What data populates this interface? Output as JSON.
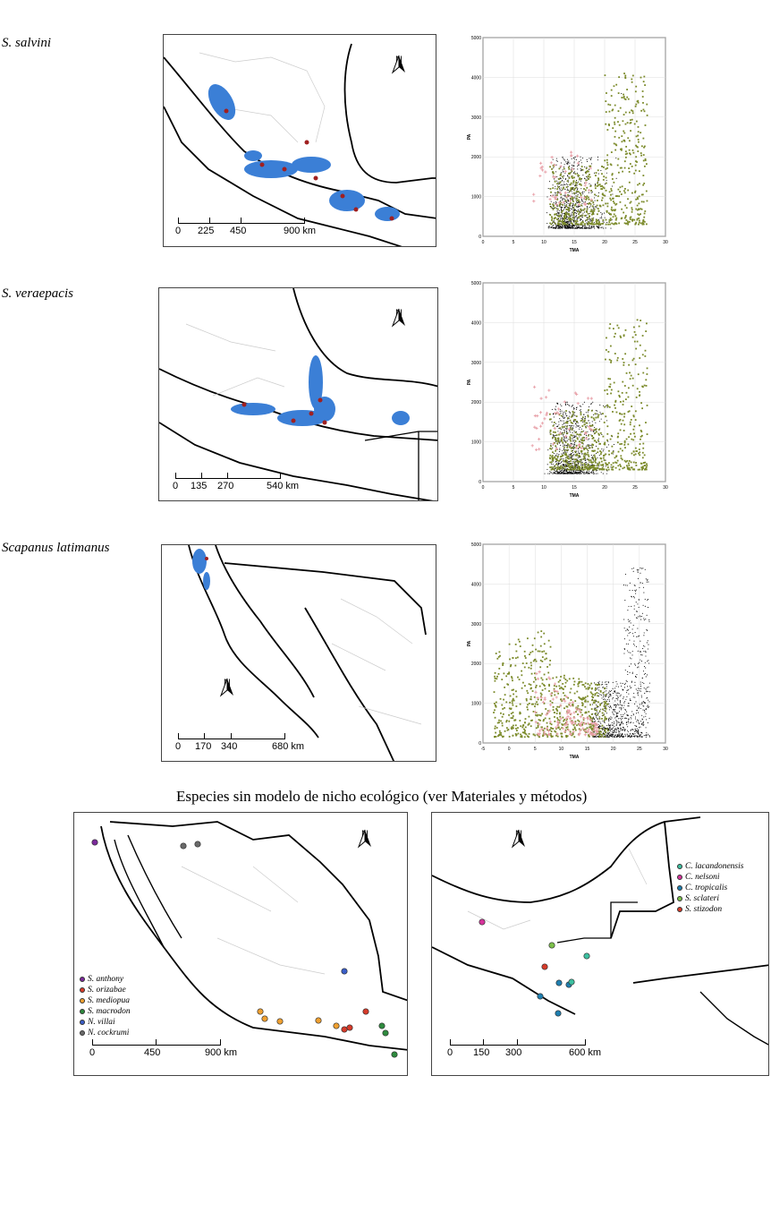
{
  "rows": [
    {
      "species": "S. salvini",
      "scale": [
        "0",
        "225",
        "450",
        "900 km"
      ],
      "north": "N",
      "chart_data": {
        "type": "scatter",
        "xlabel": "TMA",
        "ylabel": "PA",
        "xlim": [
          0,
          30
        ],
        "ylim": [
          0,
          5000
        ],
        "xticks": [
          "0",
          "5",
          "10",
          "15",
          "20",
          "25",
          "30"
        ],
        "yticks": [
          "0",
          "1000",
          "2000",
          "3000",
          "4000",
          "5000"
        ],
        "series": [
          {
            "color": "#000000"
          },
          {
            "color": "#7b8a2a"
          },
          {
            "color": "#e8a0a8"
          }
        ]
      }
    },
    {
      "species": "S. veraepacis",
      "scale": [
        "0",
        "135",
        "270",
        "540 km"
      ],
      "north": "N",
      "chart_data": {
        "type": "scatter",
        "xlabel": "TMA",
        "ylabel": "PA",
        "xlim": [
          0,
          30
        ],
        "ylim": [
          0,
          5000
        ],
        "xticks": [
          "0",
          "5",
          "10",
          "15",
          "20",
          "25",
          "30"
        ],
        "yticks": [
          "0",
          "1000",
          "2000",
          "3000",
          "4000",
          "5000"
        ],
        "series": [
          {
            "color": "#000000"
          },
          {
            "color": "#7b8a2a"
          },
          {
            "color": "#e8a0a8"
          }
        ]
      }
    },
    {
      "species": "Scapanus latimanus",
      "scale": [
        "0",
        "170",
        "340",
        "680 km"
      ],
      "north": "N",
      "chart_data": {
        "type": "scatter",
        "xlabel": "TMA",
        "ylabel": "PA",
        "xlim": [
          -5,
          30
        ],
        "ylim": [
          0,
          5000
        ],
        "xticks": [
          "-5",
          "0",
          "5",
          "10",
          "15",
          "20",
          "25",
          "30"
        ],
        "yticks": [
          "0",
          "1000",
          "2000",
          "3000",
          "4000",
          "5000"
        ],
        "series": [
          {
            "color": "#000000"
          },
          {
            "color": "#7b8a2a"
          },
          {
            "color": "#e8a0a8"
          }
        ]
      }
    }
  ],
  "bottom": {
    "title": "Especies sin modelo de nicho ecológico (ver Materiales y métodos)",
    "left": {
      "scale": [
        "0",
        "450",
        "900 km"
      ],
      "north": "N",
      "legend": [
        {
          "label": "S. anthony",
          "color": "#7b2a9b"
        },
        {
          "label": "S. orizabae",
          "color": "#d63b2a"
        },
        {
          "label": "S. mediopua",
          "color": "#f0a030"
        },
        {
          "label": "S. macrodon",
          "color": "#2e8b3e"
        },
        {
          "label": "N. villai",
          "color": "#3a5ec8"
        },
        {
          "label": "N. cockrumi",
          "color": "#6a6a6a"
        }
      ]
    },
    "right": {
      "scale": [
        "0",
        "150",
        "300",
        "600 km"
      ],
      "north": "N",
      "legend": [
        {
          "label": "C. lacandonensis",
          "color": "#3cc0a0"
        },
        {
          "label": "C. nelsoni",
          "color": "#d6339b"
        },
        {
          "label": "C. tropicalis",
          "color": "#1f7fb0"
        },
        {
          "label": "S. sclateri",
          "color": "#7cc04a"
        },
        {
          "label": "S. stizodon",
          "color": "#d63b2a"
        }
      ]
    }
  }
}
